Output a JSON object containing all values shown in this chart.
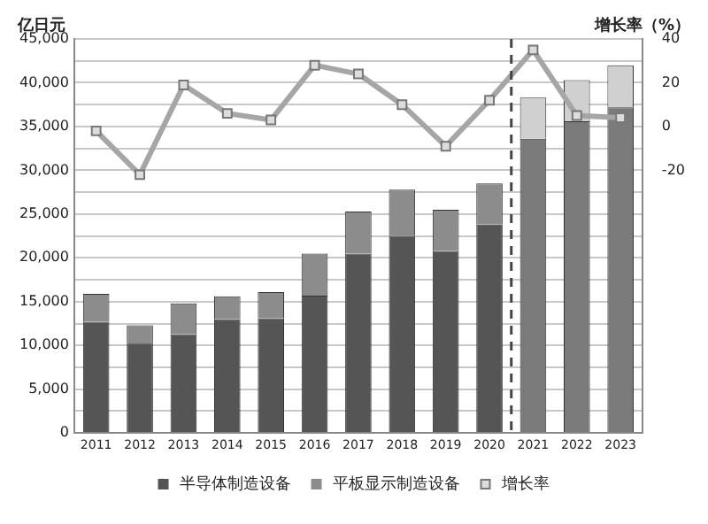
{
  "chart_data": {
    "type": "bar",
    "stacked": true,
    "ylabel": "亿日元",
    "y2label": "增长率（%）",
    "categories": [
      "2011",
      "2012",
      "2013",
      "2014",
      "2015",
      "2016",
      "2017",
      "2018",
      "2019",
      "2020",
      "2021",
      "2022",
      "2023"
    ],
    "series": [
      {
        "name": "半导体制造设备",
        "color": "#555555",
        "colors": [
          "#555555",
          "#555555",
          "#555555",
          "#555555",
          "#555555",
          "#555555",
          "#555555",
          "#555555",
          "#555555",
          "#555555",
          "#7a7a7a",
          "#7a7a7a",
          "#7a7a7a"
        ],
        "values": [
          12700,
          10300,
          11300,
          13000,
          13100,
          15700,
          20500,
          22500,
          20800,
          23800,
          33600,
          35600,
          37200
        ]
      },
      {
        "name": "平板显示制造设备",
        "color": "#8c8c8c",
        "colors": [
          "#8c8c8c",
          "#8c8c8c",
          "#8c8c8c",
          "#8c8c8c",
          "#8c8c8c",
          "#8c8c8c",
          "#8c8c8c",
          "#8c8c8c",
          "#8c8c8c",
          "#8c8c8c",
          "#d0d0d0",
          "#d0d0d0",
          "#d0d0d0"
        ],
        "values": [
          3200,
          2000,
          3500,
          2600,
          3000,
          4800,
          4800,
          5300,
          4700,
          4700,
          4700,
          4700,
          4800
        ]
      },
      {
        "name": "增长率",
        "type": "line",
        "axis": "y2",
        "color": "#a6a6a6",
        "values": [
          -2,
          -22,
          19,
          6,
          3,
          28,
          24,
          10,
          -9,
          12,
          35,
          5,
          4
        ]
      }
    ],
    "ylim": [
      0,
      45000
    ],
    "yticks": [
      0,
      {
        "value": 2500,
        "label": null
      },
      {
        "value": 5000,
        "label": "5,000"
      },
      {
        "value": 7500,
        "label": null
      },
      {
        "value": 10000,
        "label": "10,000"
      },
      {
        "value": 12500,
        "label": null
      },
      {
        "value": 15000,
        "label": "15,000"
      },
      {
        "value": 17500,
        "label": null
      },
      {
        "value": 20000,
        "label": "20,000"
      },
      {
        "value": 22500,
        "label": null
      },
      {
        "value": 25000,
        "label": "25,000"
      },
      {
        "value": 27500,
        "label": null
      },
      {
        "value": 30000,
        "label": "30,000"
      },
      {
        "value": 32500,
        "label": null
      },
      {
        "value": 35000,
        "label": "35,000"
      },
      {
        "value": 37500,
        "label": null
      },
      {
        "value": 40000,
        "label": "40,000"
      },
      {
        "value": 42500,
        "label": null
      },
      {
        "value": 45000,
        "label": "45,000"
      }
    ],
    "y2lim": [
      -140,
      40
    ],
    "y2ticks": [
      -20,
      0,
      20,
      40
    ],
    "ref_lines": [
      {
        "axis": "x",
        "value": "2021",
        "color": "#444444",
        "line_style": "dashed"
      }
    ],
    "grid": "y",
    "legend": "bottom",
    "marker": "square",
    "line_style": "solid"
  }
}
